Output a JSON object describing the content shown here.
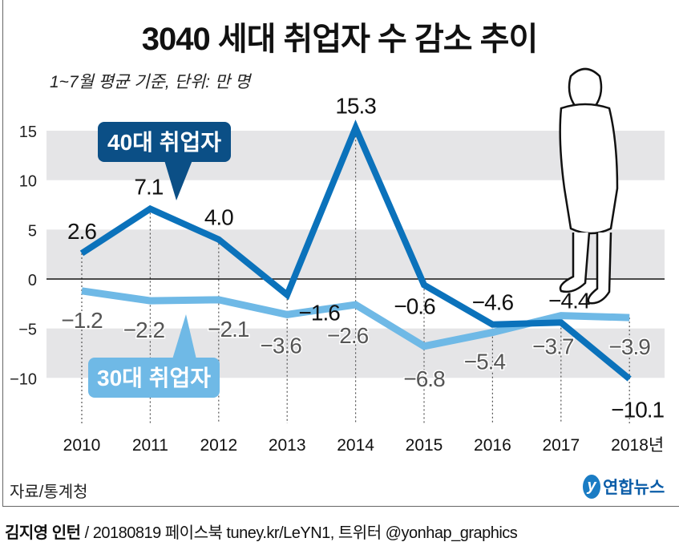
{
  "chart_data": {
    "type": "line",
    "title": "3040 세대 취업자 수 감소 추이",
    "subtitle": "1~7월 평균 기준, 단위: 만 명",
    "categories": [
      "2010",
      "2011",
      "2012",
      "2013",
      "2014",
      "2015",
      "2016",
      "2017",
      "2018년"
    ],
    "ylim": [
      -13,
      16
    ],
    "yticks": [
      15,
      10,
      5,
      0,
      -5,
      -10
    ],
    "grid": "alternating horizontal bands",
    "series": [
      {
        "name": "40대 취업자",
        "color": "#0b72bb",
        "label_color": "#0b4f86",
        "values": [
          2.6,
          7.1,
          4.0,
          -1.6,
          15.3,
          -0.6,
          -4.6,
          -4.4,
          -10.1
        ]
      },
      {
        "name": "30대 취업자",
        "color": "#6fb9e6",
        "label_color": "#6fb9e6",
        "values": [
          -1.2,
          -2.2,
          -2.1,
          -3.6,
          -2.6,
          -6.8,
          -5.4,
          -3.7,
          -3.9
        ]
      }
    ],
    "data_labels": {
      "40": [
        "2.6",
        "7.1",
        "4.0",
        "−1.6",
        "15.3",
        "−0.6",
        "−4.6",
        "−4.4",
        "−10.1"
      ],
      "30": [
        "−1.2",
        "−2.2",
        "−2.1",
        "−3.6",
        "−2.6",
        "−6.8",
        "−5.4",
        "−3.7",
        "−3.9"
      ]
    },
    "ytick_labels": [
      "15",
      "10",
      "5",
      "0",
      "−5",
      "−10"
    ]
  },
  "source": "자료/통계청",
  "logo": {
    "mark": "y",
    "text": "연합뉴스"
  },
  "credit": {
    "author": "김지영 인턴",
    "rest": " / 20180819  페이스북 tuney.kr/LeYN1, 트위터 @yonhap_graphics"
  }
}
